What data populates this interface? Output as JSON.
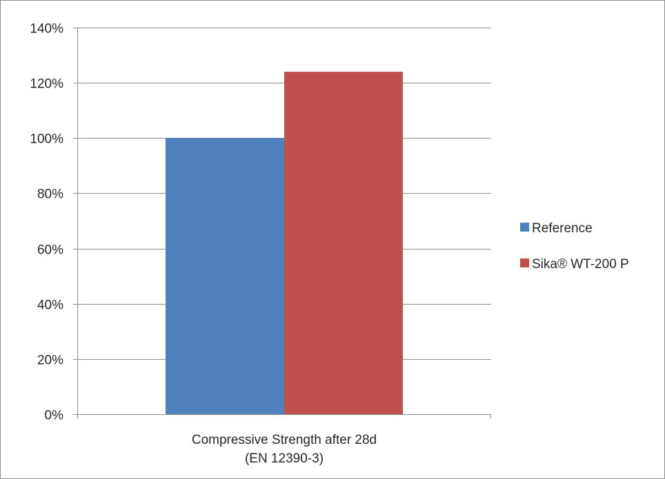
{
  "chart_data": {
    "type": "bar",
    "title": "",
    "xlabel": "",
    "ylabel": "",
    "categories": [
      "Compressive Strength after 28d (EN 12390-3)"
    ],
    "category_lines": [
      "Compressive Strength after 28d",
      "(EN 12390-3)"
    ],
    "series": [
      {
        "name": "Reference",
        "values": [
          1.0
        ],
        "color": "#4f81bd"
      },
      {
        "name": "Sika® WT-200 P",
        "values": [
          1.24
        ],
        "color": "#c0504d"
      }
    ],
    "ylim": [
      0,
      1.4
    ],
    "yticks": [
      0,
      0.2,
      0.4,
      0.6,
      0.8,
      1.0,
      1.2,
      1.4
    ],
    "ytick_labels": [
      "0%",
      "20%",
      "40%",
      "60%",
      "80%",
      "100%",
      "120%",
      "140%"
    ],
    "grid": true,
    "legend_position": "right"
  }
}
